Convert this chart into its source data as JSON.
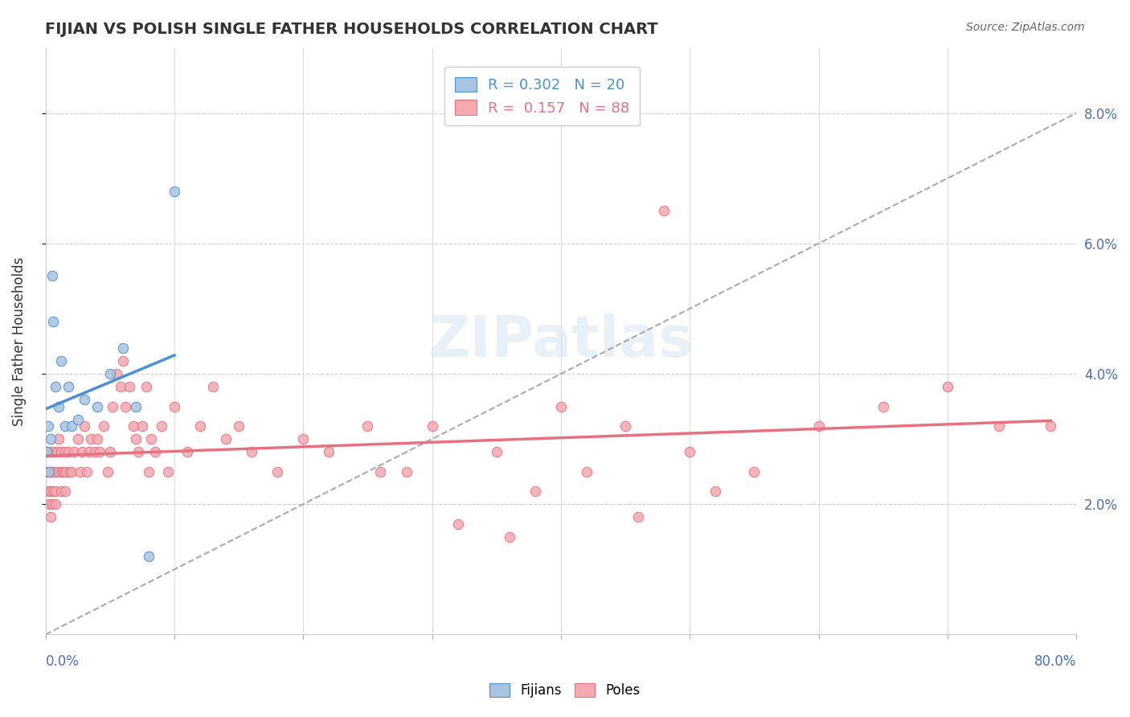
{
  "title": "FIJIAN VS POLISH SINGLE FATHER HOUSEHOLDS CORRELATION CHART",
  "source": "Source: ZipAtlas.com",
  "ylabel": "Single Father Households",
  "fijian_color": "#a8c4e0",
  "poles_color": "#f4a8b0",
  "fijian_line_color": "#4a90d9",
  "poles_line_color": "#e87080",
  "fijian_scatter_x": [
    0.001,
    0.002,
    0.003,
    0.004,
    0.005,
    0.006,
    0.008,
    0.01,
    0.012,
    0.015,
    0.018,
    0.02,
    0.025,
    0.03,
    0.04,
    0.05,
    0.06,
    0.07,
    0.08,
    0.1
  ],
  "fijian_scatter_y": [
    0.028,
    0.032,
    0.025,
    0.03,
    0.055,
    0.048,
    0.038,
    0.035,
    0.042,
    0.032,
    0.038,
    0.032,
    0.033,
    0.036,
    0.035,
    0.04,
    0.044,
    0.035,
    0.012,
    0.068
  ],
  "poles_scatter_x": [
    0.001,
    0.002,
    0.002,
    0.003,
    0.003,
    0.004,
    0.004,
    0.005,
    0.005,
    0.006,
    0.006,
    0.007,
    0.008,
    0.008,
    0.009,
    0.01,
    0.01,
    0.012,
    0.012,
    0.013,
    0.014,
    0.015,
    0.015,
    0.016,
    0.018,
    0.019,
    0.02,
    0.022,
    0.025,
    0.027,
    0.028,
    0.03,
    0.032,
    0.034,
    0.035,
    0.038,
    0.04,
    0.042,
    0.045,
    0.048,
    0.05,
    0.052,
    0.055,
    0.058,
    0.06,
    0.062,
    0.065,
    0.068,
    0.07,
    0.072,
    0.075,
    0.078,
    0.08,
    0.082,
    0.085,
    0.09,
    0.095,
    0.1,
    0.11,
    0.12,
    0.13,
    0.14,
    0.15,
    0.16,
    0.18,
    0.2,
    0.22,
    0.25,
    0.28,
    0.3,
    0.35,
    0.4,
    0.45,
    0.5,
    0.55,
    0.6,
    0.65,
    0.7,
    0.74,
    0.78,
    0.38,
    0.42,
    0.46,
    0.52,
    0.48,
    0.36,
    0.32,
    0.26
  ],
  "poles_scatter_y": [
    0.025,
    0.022,
    0.028,
    0.02,
    0.025,
    0.018,
    0.022,
    0.02,
    0.025,
    0.022,
    0.028,
    0.025,
    0.02,
    0.022,
    0.028,
    0.025,
    0.03,
    0.022,
    0.028,
    0.025,
    0.025,
    0.022,
    0.028,
    0.025,
    0.028,
    0.025,
    0.025,
    0.028,
    0.03,
    0.025,
    0.028,
    0.032,
    0.025,
    0.028,
    0.03,
    0.028,
    0.03,
    0.028,
    0.032,
    0.025,
    0.028,
    0.035,
    0.04,
    0.038,
    0.042,
    0.035,
    0.038,
    0.032,
    0.03,
    0.028,
    0.032,
    0.038,
    0.025,
    0.03,
    0.028,
    0.032,
    0.025,
    0.035,
    0.028,
    0.032,
    0.038,
    0.03,
    0.032,
    0.028,
    0.025,
    0.03,
    0.028,
    0.032,
    0.025,
    0.032,
    0.028,
    0.035,
    0.032,
    0.028,
    0.025,
    0.032,
    0.035,
    0.038,
    0.032,
    0.032,
    0.022,
    0.025,
    0.018,
    0.022,
    0.065,
    0.015,
    0.017,
    0.025
  ],
  "xlim": [
    0.0,
    0.8
  ],
  "ylim": [
    0.0,
    0.09
  ],
  "bg_color": "#ffffff",
  "grid_color": "#cccccc",
  "right_ytick_vals": [
    0.02,
    0.04,
    0.06,
    0.08
  ],
  "right_ytick_labels": [
    "2.0%",
    "4.0%",
    "6.0%",
    "8.0%"
  ]
}
